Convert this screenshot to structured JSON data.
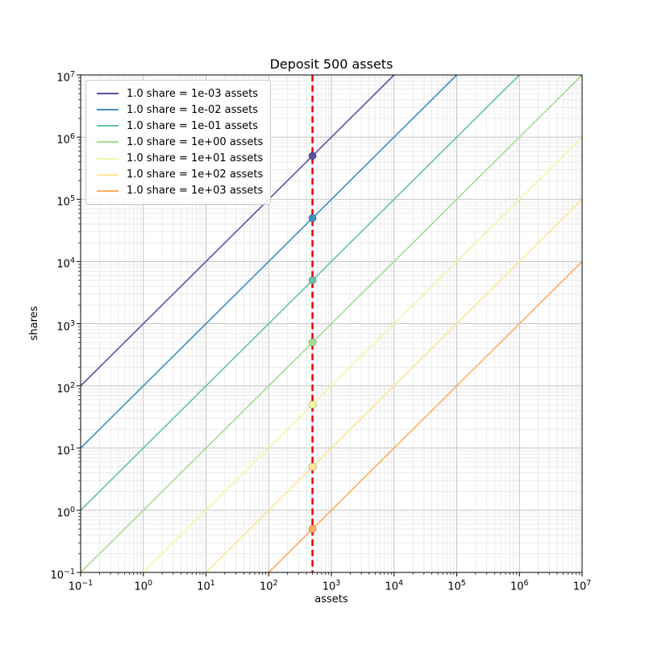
{
  "chart_data": {
    "type": "line",
    "title": "Deposit 500 assets",
    "xlabel": "assets",
    "ylabel": "shares",
    "xscale": "log",
    "yscale": "log",
    "xlim": [
      0.1,
      10000000
    ],
    "ylim": [
      0.1,
      10000000
    ],
    "x_tick_exponents": [
      "−1",
      "0",
      "1",
      "2",
      "3",
      "4",
      "5",
      "6",
      "7"
    ],
    "y_tick_exponents": [
      "−1",
      "0",
      "1",
      "2",
      "3",
      "4",
      "5",
      "6",
      "7"
    ],
    "grid": {
      "major": true,
      "minor": true,
      "major_color": "#c3c3c3",
      "minor_color": "#e6e6e6"
    },
    "legend_position": "upper left",
    "series": [
      {
        "label": "1.0 share = 1e-03 assets",
        "color": "#5e4fa2",
        "assets_per_share": 0.001,
        "point": {
          "assets": 500,
          "shares": 500000
        }
      },
      {
        "label": "1.0 share = 1e-02 assets",
        "color": "#3d8fc0",
        "assets_per_share": 0.01,
        "point": {
          "assets": 500,
          "shares": 50000
        }
      },
      {
        "label": "1.0 share = 1e-01 assets",
        "color": "#66c2a5",
        "assets_per_share": 0.1,
        "point": {
          "assets": 500,
          "shares": 5000
        }
      },
      {
        "label": "1.0 share = 1e+00 assets",
        "color": "#a6dc92",
        "assets_per_share": 1,
        "point": {
          "assets": 500,
          "shares": 500
        }
      },
      {
        "label": "1.0 share = 1e+01 assets",
        "color": "#edf8a3",
        "assets_per_share": 10,
        "point": {
          "assets": 500,
          "shares": 50
        }
      },
      {
        "label": "1.0 share = 1e+02 assets",
        "color": "#fee593",
        "assets_per_share": 100,
        "point": {
          "assets": 500,
          "shares": 5
        }
      },
      {
        "label": "1.0 share = 1e+03 assets",
        "color": "#fdae61",
        "assets_per_share": 1000,
        "point": {
          "assets": 500,
          "shares": 0.5
        }
      }
    ],
    "deposit_line": {
      "x": 500,
      "color": "#f40000",
      "style": "dashed"
    }
  }
}
